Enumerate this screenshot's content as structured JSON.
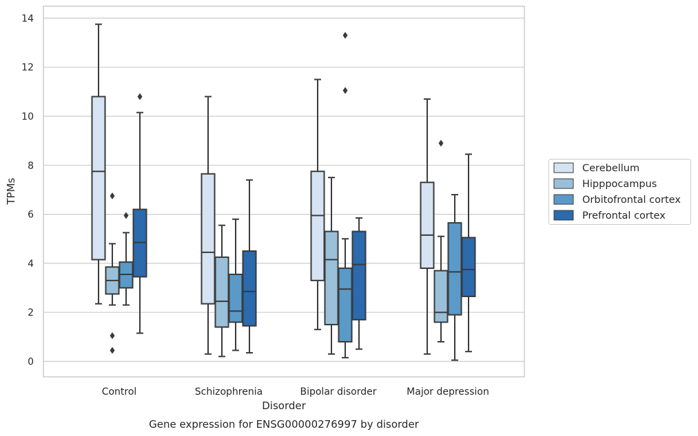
{
  "chart_data": {
    "type": "boxplot",
    "title": "",
    "caption": "Gene expression for ENSG00000276997 by disorder",
    "xlabel": "Disorder",
    "ylabel": "TPMs",
    "ylim": [
      -0.6,
      14.5
    ],
    "yticks": [
      0,
      2,
      4,
      6,
      8,
      10,
      12,
      14
    ],
    "grid": "horizontal",
    "legend_position": "right",
    "categories": [
      "Control",
      "Schizophrenia",
      "Bipolar disorder",
      "Major depression"
    ],
    "series": [
      {
        "name": "Cerebellum",
        "color": "#d5e3f2",
        "boxes": [
          {
            "whislo": 2.35,
            "q1": 4.15,
            "med": 7.75,
            "q3": 10.8,
            "whishi": 13.75,
            "fliers": []
          },
          {
            "whislo": 0.3,
            "q1": 2.35,
            "med": 4.45,
            "q3": 7.65,
            "whishi": 10.8,
            "fliers": []
          },
          {
            "whislo": 1.3,
            "q1": 3.3,
            "med": 5.95,
            "q3": 7.75,
            "whishi": 11.5,
            "fliers": []
          },
          {
            "whislo": 0.3,
            "q1": 3.8,
            "med": 5.15,
            "q3": 7.3,
            "whishi": 10.7,
            "fliers": []
          }
        ]
      },
      {
        "name": "Hipppocampus",
        "color": "#9ac0d9",
        "boxes": [
          {
            "whislo": 2.3,
            "q1": 2.75,
            "med": 3.3,
            "q3": 3.85,
            "whishi": 4.8,
            "fliers": [
              6.75,
              1.05,
              0.45
            ]
          },
          {
            "whislo": 0.2,
            "q1": 1.4,
            "med": 2.45,
            "q3": 4.25,
            "whishi": 5.55,
            "fliers": []
          },
          {
            "whislo": 0.3,
            "q1": 1.5,
            "med": 4.15,
            "q3": 5.3,
            "whishi": 7.5,
            "fliers": []
          },
          {
            "whislo": 0.8,
            "q1": 1.6,
            "med": 2.0,
            "q3": 3.7,
            "whishi": 5.1,
            "fliers": [
              8.9
            ]
          }
        ]
      },
      {
        "name": "Orbitofrontal cortex",
        "color": "#5b9ac8",
        "boxes": [
          {
            "whislo": 2.3,
            "q1": 3.0,
            "med": 3.55,
            "q3": 4.05,
            "whishi": 5.25,
            "fliers": [
              5.95
            ]
          },
          {
            "whislo": 0.45,
            "q1": 1.6,
            "med": 2.05,
            "q3": 3.55,
            "whishi": 5.8,
            "fliers": []
          },
          {
            "whislo": 0.15,
            "q1": 0.8,
            "med": 2.95,
            "q3": 3.8,
            "whishi": 5.0,
            "fliers": [
              13.3,
              11.05
            ]
          },
          {
            "whislo": 0.05,
            "q1": 1.9,
            "med": 3.65,
            "q3": 5.65,
            "whishi": 6.8,
            "fliers": []
          }
        ]
      },
      {
        "name": "Prefrontal cortex",
        "color": "#2a6aad",
        "boxes": [
          {
            "whislo": 1.15,
            "q1": 3.45,
            "med": 4.85,
            "q3": 6.2,
            "whishi": 10.15,
            "fliers": [
              10.8
            ]
          },
          {
            "whislo": 0.35,
            "q1": 1.45,
            "med": 2.85,
            "q3": 4.5,
            "whishi": 7.4,
            "fliers": []
          },
          {
            "whislo": 0.5,
            "q1": 1.7,
            "med": 3.95,
            "q3": 5.3,
            "whishi": 5.85,
            "fliers": []
          },
          {
            "whislo": 0.4,
            "q1": 2.65,
            "med": 3.75,
            "q3": 5.05,
            "whishi": 8.45,
            "fliers": []
          }
        ]
      }
    ],
    "style": {
      "edge_color": "#3a3a3a",
      "grid_color": "#cccccc",
      "frame_color": "#cccccc",
      "flier_color": "#3a3a3a"
    }
  }
}
